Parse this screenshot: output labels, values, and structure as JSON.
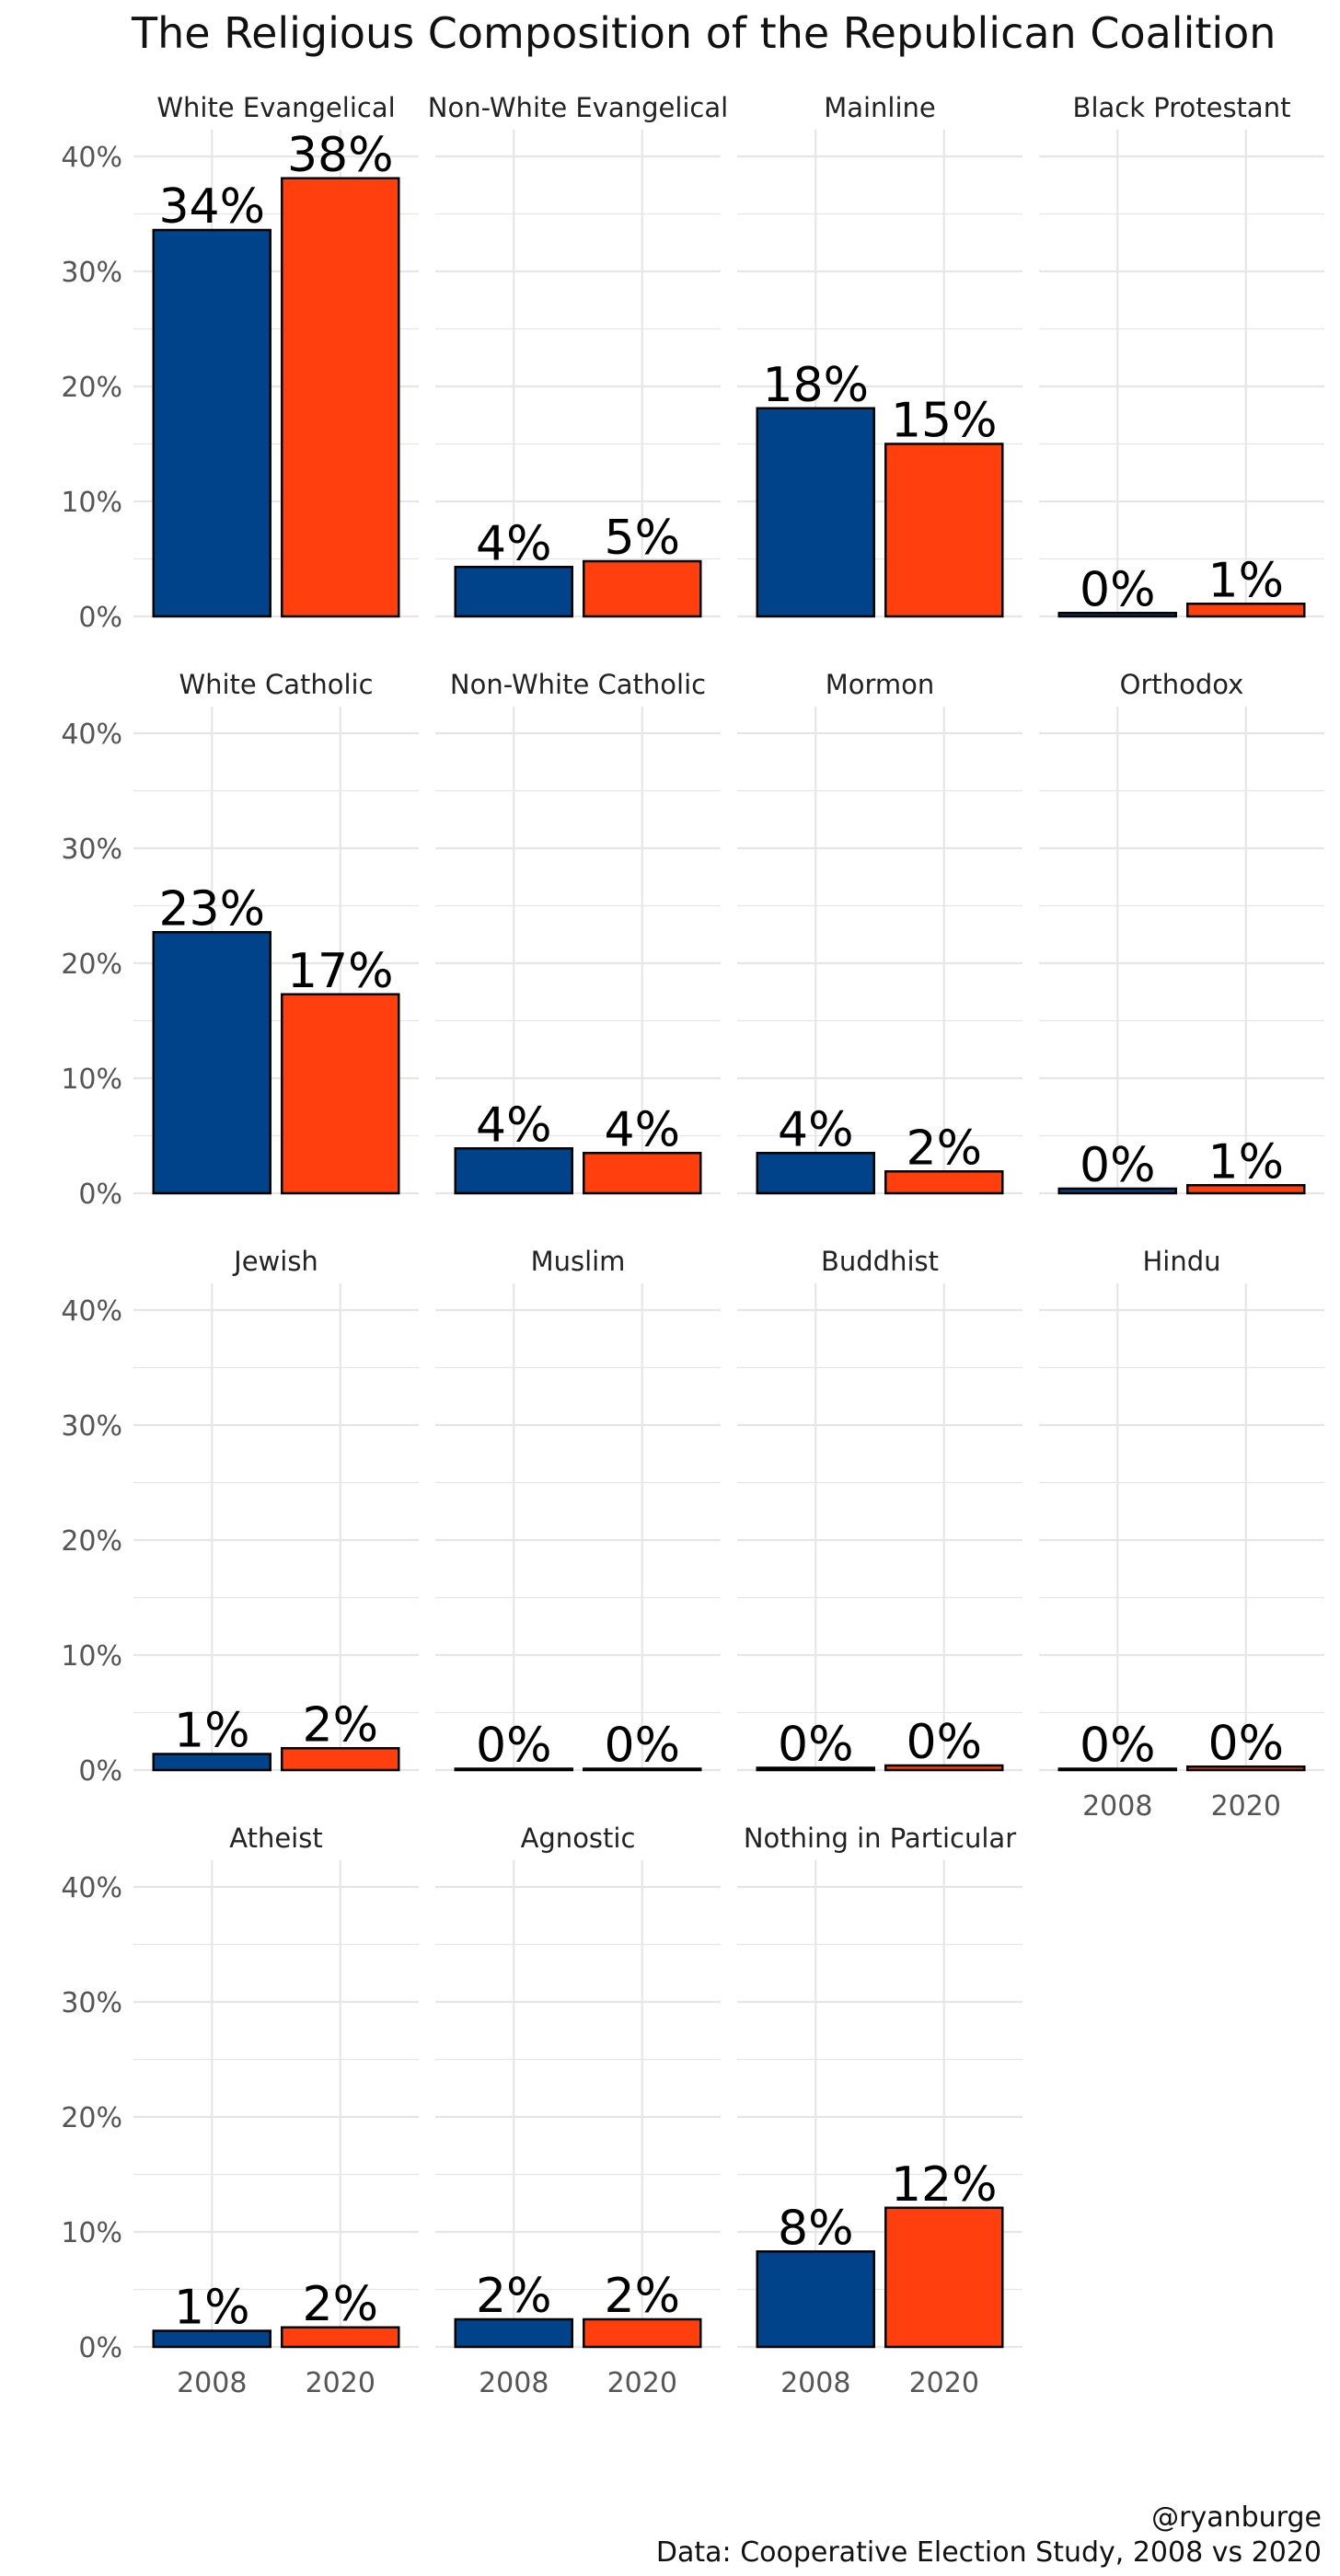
{
  "chart_data": {
    "type": "bar",
    "title": "The Religious Composition of the Republican Coalition",
    "categories": [
      "2008",
      "2020"
    ],
    "ylim": [
      0,
      0.42
    ],
    "yticks": [
      0,
      0.1,
      0.2,
      0.3,
      0.4
    ],
    "ytick_labels": [
      "0%",
      "10%",
      "20%",
      "30%",
      "40%"
    ],
    "grid": true,
    "layout": "facet-wrap 4 columns",
    "colors": {
      "2008": "#00438A",
      "2020": "#FF3F0E",
      "bar_outline": "#000000",
      "grid": "#E6E6E6"
    },
    "panels": [
      {
        "name": "White Evangelical",
        "values": [
          0.336,
          0.381
        ],
        "labels": [
          "34%",
          "38%"
        ]
      },
      {
        "name": "Non-White Evangelical",
        "values": [
          0.043,
          0.048
        ],
        "labels": [
          "4%",
          "5%"
        ]
      },
      {
        "name": "Mainline",
        "values": [
          0.181,
          0.15
        ],
        "labels": [
          "18%",
          "15%"
        ]
      },
      {
        "name": "Black Protestant",
        "values": [
          0.003,
          0.011
        ],
        "labels": [
          "0%",
          "1%"
        ]
      },
      {
        "name": "White Catholic",
        "values": [
          0.227,
          0.173
        ],
        "labels": [
          "23%",
          "17%"
        ]
      },
      {
        "name": "Non-White Catholic",
        "values": [
          0.039,
          0.035
        ],
        "labels": [
          "4%",
          "4%"
        ]
      },
      {
        "name": "Mormon",
        "values": [
          0.035,
          0.019
        ],
        "labels": [
          "4%",
          "2%"
        ]
      },
      {
        "name": "Orthodox",
        "values": [
          0.004,
          0.007
        ],
        "labels": [
          "0%",
          "1%"
        ]
      },
      {
        "name": "Jewish",
        "values": [
          0.014,
          0.019
        ],
        "labels": [
          "1%",
          "2%"
        ]
      },
      {
        "name": "Muslim",
        "values": [
          0.001,
          0.001
        ],
        "labels": [
          "0%",
          "0%"
        ]
      },
      {
        "name": "Buddhist",
        "values": [
          0.002,
          0.004
        ],
        "labels": [
          "0%",
          "0%"
        ]
      },
      {
        "name": "Hindu",
        "values": [
          0.001,
          0.003
        ],
        "labels": [
          "0%",
          "0%"
        ]
      },
      {
        "name": "Atheist",
        "values": [
          0.014,
          0.017
        ],
        "labels": [
          "1%",
          "2%"
        ]
      },
      {
        "name": "Agnostic",
        "values": [
          0.024,
          0.024
        ],
        "labels": [
          "2%",
          "2%"
        ]
      },
      {
        "name": "Nothing in Particular",
        "values": [
          0.083,
          0.121
        ],
        "labels": [
          "8%",
          "12%"
        ]
      }
    ],
    "caption": [
      "@ryanburge",
      "Data: Cooperative Election Study, 2008 vs 2020"
    ]
  }
}
